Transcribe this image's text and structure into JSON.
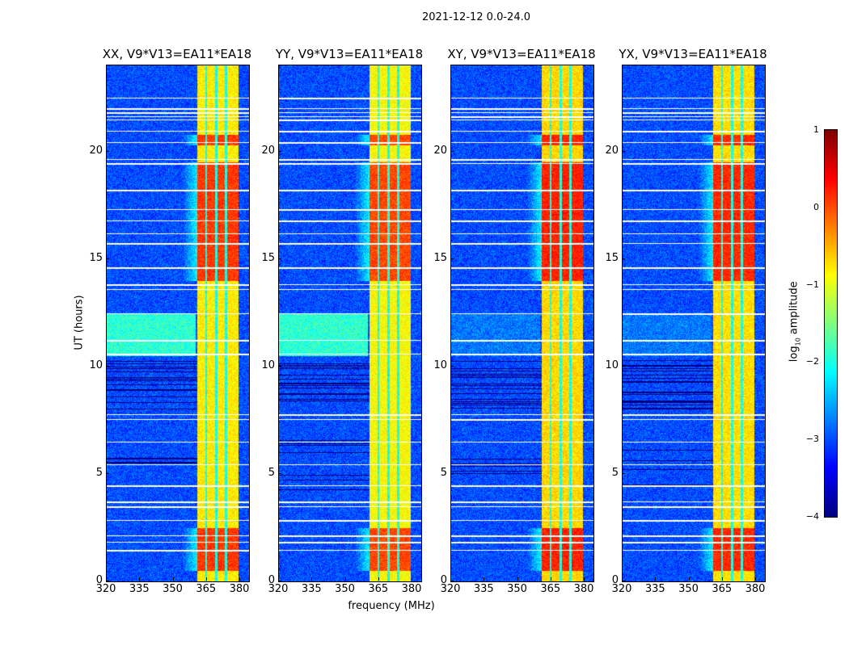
{
  "chart_data": {
    "type": "heatmap",
    "title": "2021-12-12 0.0-24.0",
    "xlabel": "frequency (MHz)",
    "ylabel": "UT (hours)",
    "xlim": [
      320,
      384
    ],
    "ylim": [
      0,
      24
    ],
    "xticks": [
      320,
      335,
      350,
      365,
      380
    ],
    "yticks": [
      0,
      5,
      10,
      15,
      20
    ],
    "panels": [
      {
        "title": "XX, V9*V13=EA11*EA18",
        "gain": 1.0,
        "mid_band_activity": 1.0
      },
      {
        "title": "YY, V9*V13=EA11*EA18",
        "gain": 1.1,
        "mid_band_activity": 1.0
      },
      {
        "title": "XY, V9*V13=EA11*EA18",
        "gain": 0.85,
        "mid_band_activity": 0.2
      },
      {
        "title": "YX, V9*V13=EA11*EA18",
        "gain": 0.9,
        "mid_band_activity": 0.2
      }
    ],
    "background_log_amplitude": -3.0,
    "rfi_band_mhz": [
      360.5,
      379.0
    ],
    "rfi_subband_gaps_mhz": [
      364.5,
      369.0,
      373.5
    ],
    "rfi_band_log_amplitude": -0.8,
    "strong_rfi_periods_hours": [
      [
        0.5,
        2.5
      ],
      [
        14.0,
        19.5
      ],
      [
        20.3,
        20.8
      ]
    ],
    "broadband_elevated_periods_hours": [
      [
        10.5,
        12.5
      ]
    ],
    "flagged_times_hours": [
      1.47,
      1.84,
      2.14,
      2.86,
      3.5,
      3.7,
      4.47,
      5.45,
      6.5,
      7.55,
      7.78,
      10.6,
      11.24,
      12.48,
      13.6,
      13.83,
      14.62,
      15.75,
      16.2,
      16.8,
      17.33,
      18.2,
      19.44,
      19.66,
      20.45,
      20.94,
      21.47,
      21.65,
      21.84,
      22.0,
      22.5
    ],
    "colorbar": {
      "label_prefix": "log",
      "label_sub": "10",
      "label_suffix": " amplitude",
      "range": [
        -4,
        1
      ],
      "ticks": [
        "−4",
        "−3",
        "−2",
        "−1",
        "0",
        "1"
      ],
      "tick_values": [
        -4,
        -3,
        -2,
        -1,
        0,
        1
      ],
      "colormap": "jet"
    }
  }
}
